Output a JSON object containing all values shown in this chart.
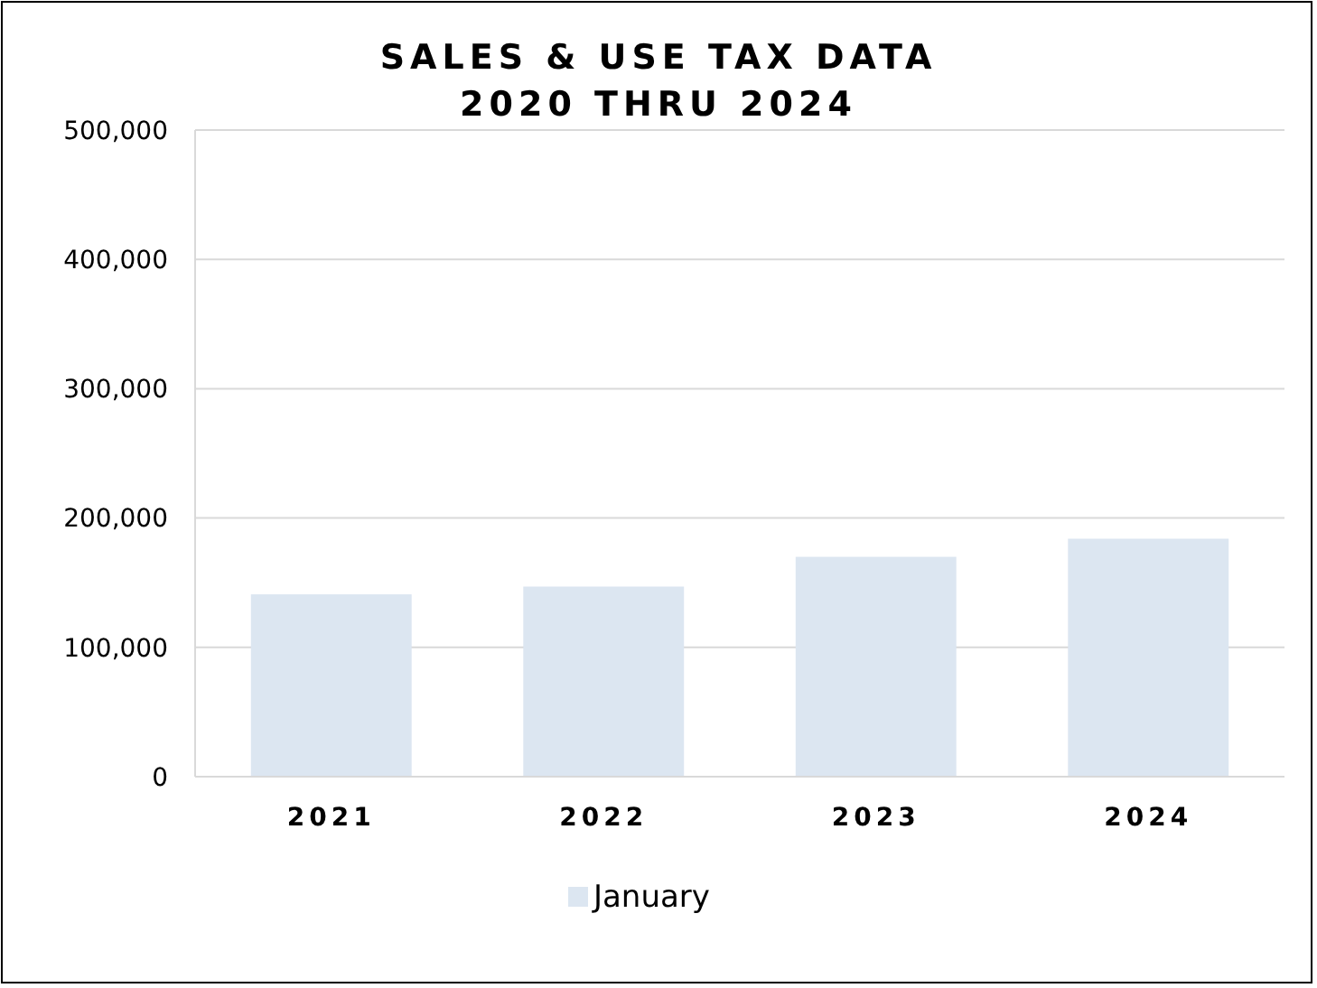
{
  "chart_data": {
    "type": "bar",
    "title": "SALES & USE TAX DATA\n2020 THRU 2024",
    "categories": [
      "2021",
      "2022",
      "2023",
      "2024"
    ],
    "series": [
      {
        "name": "January",
        "color": "#dce6f1",
        "values": [
          141000,
          147000,
          170000,
          184000
        ]
      }
    ],
    "ylim": [
      0,
      500000
    ],
    "yticks": [
      {
        "value": 0,
        "label": "0"
      },
      {
        "value": 100000,
        "label": "100,000"
      },
      {
        "value": 200000,
        "label": "200,000"
      },
      {
        "value": 300000,
        "label": "300,000"
      },
      {
        "value": 400000,
        "label": "400,000"
      },
      {
        "value": 500000,
        "label": "500,000"
      }
    ],
    "grid": "y",
    "legend": "bottom"
  }
}
